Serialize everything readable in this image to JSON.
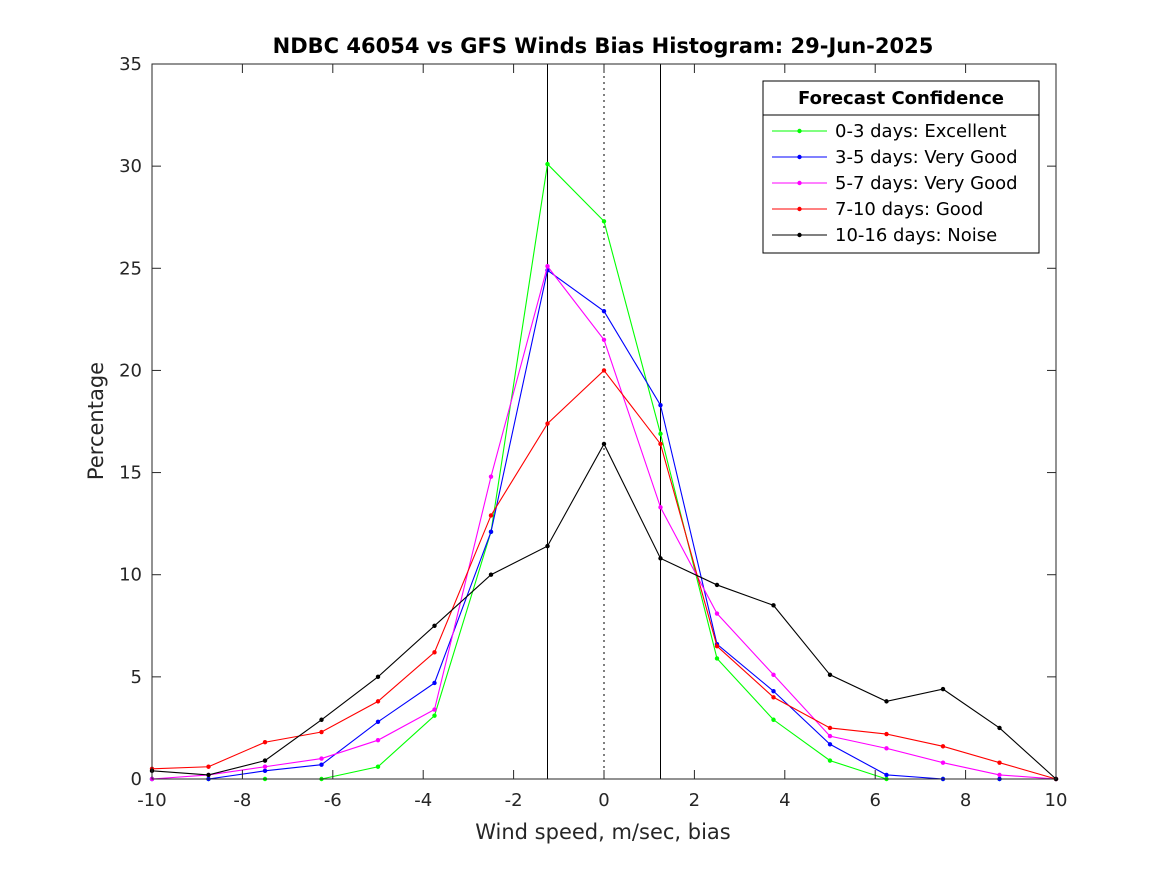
{
  "chart_data": {
    "type": "line",
    "title": "NDBC 46054 vs GFS Winds Bias Histogram: 29-Jun-2025",
    "xlabel": "Wind speed, m/sec, bias",
    "ylabel": "Percentage",
    "xlim": [
      -10,
      10
    ],
    "ylim": [
      0,
      35
    ],
    "xticks": [
      -10,
      -8,
      -6,
      -4,
      -2,
      0,
      2,
      4,
      6,
      8,
      10
    ],
    "yticks": [
      0,
      5,
      10,
      15,
      20,
      25,
      30,
      35
    ],
    "grid": false,
    "legend": {
      "title": "Forecast Confidence",
      "placement": "top-right"
    },
    "reference_lines": [
      {
        "x": -1.25,
        "style": "solid",
        "color": "#000000"
      },
      {
        "x": 0,
        "style": "dotted",
        "color": "#000000"
      },
      {
        "x": 1.25,
        "style": "solid",
        "color": "#000000"
      }
    ],
    "x": [
      -10,
      -8.75,
      -7.5,
      -6.25,
      -5,
      -3.75,
      -2.5,
      -1.25,
      0,
      1.25,
      2.5,
      3.75,
      5,
      6.25,
      7.5,
      8.75,
      10
    ],
    "series": [
      {
        "name": "0-3 days: Excellent",
        "color": "#00ff00",
        "values": [
          0,
          0,
          0,
          0,
          0.6,
          3.1,
          12.1,
          30.1,
          27.3,
          16.9,
          5.9,
          2.9,
          0.9,
          0,
          0,
          0,
          0
        ]
      },
      {
        "name": "3-5 days: Very Good",
        "color": "#0000ff",
        "values": [
          0,
          0,
          0.4,
          0.7,
          2.8,
          4.7,
          12.1,
          24.9,
          22.9,
          18.3,
          6.6,
          4.3,
          1.7,
          0.2,
          0,
          0,
          0
        ]
      },
      {
        "name": "5-7 days: Very Good",
        "color": "#ff00ff",
        "values": [
          0,
          0.2,
          0.6,
          1.0,
          1.9,
          3.4,
          14.8,
          25.1,
          21.5,
          13.3,
          8.1,
          5.1,
          2.1,
          1.5,
          0.8,
          0.2,
          0
        ]
      },
      {
        "name": "7-10 days: Good",
        "color": "#ff0000",
        "values": [
          0.5,
          0.6,
          1.8,
          2.3,
          3.8,
          6.2,
          12.9,
          17.4,
          20.0,
          16.4,
          6.5,
          4.0,
          2.5,
          2.2,
          1.6,
          0.8,
          0
        ]
      },
      {
        "name": "10-16 days: Noise",
        "color": "#000000",
        "values": [
          0.4,
          0.2,
          0.9,
          2.9,
          5.0,
          7.5,
          10.0,
          11.4,
          16.4,
          10.8,
          9.5,
          8.5,
          5.1,
          3.8,
          4.4,
          2.5,
          0
        ]
      }
    ]
  }
}
